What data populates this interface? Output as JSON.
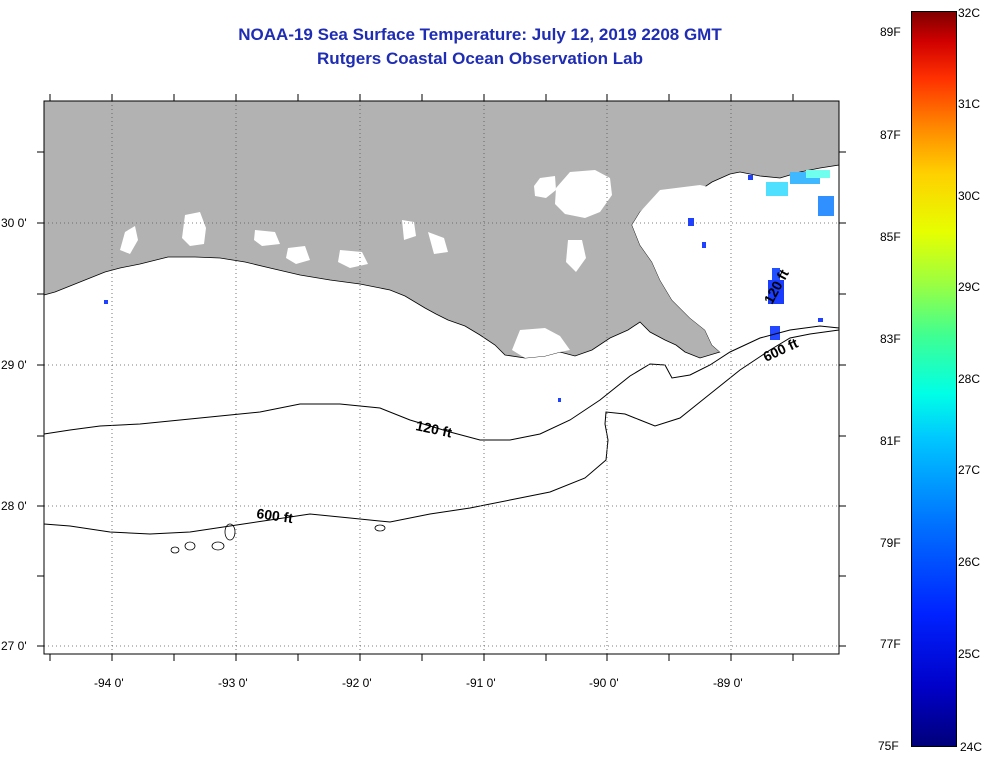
{
  "header": {
    "title": "NOAA-19 Sea Surface Temperature:  July 12, 2019 2208 GMT",
    "subtitle": "Rutgers Coastal Ocean Observation Lab"
  },
  "map": {
    "lat_labels": [
      "30 0'",
      "29 0'",
      "28 0'",
      "27 0'"
    ],
    "lon_labels": [
      "-94 0'",
      "-93 0'",
      "-92 0'",
      "-91 0'",
      "-90 0'",
      "-89 0'"
    ],
    "contours": {
      "label_120_west": "120 ft",
      "label_600_west": "600 ft",
      "label_120_east": "120 ft",
      "label_600_east": "600 ft"
    },
    "land_color": "#b2b2b2",
    "cloud_color": "#ffffff"
  },
  "colorbar": {
    "fahrenheit": [
      "89F",
      "87F",
      "85F",
      "83F",
      "81F",
      "79F",
      "77F",
      "75F"
    ],
    "celsius": [
      "32C",
      "31C",
      "30C",
      "29C",
      "28C",
      "27C",
      "26C",
      "25C",
      "24C"
    ]
  }
}
